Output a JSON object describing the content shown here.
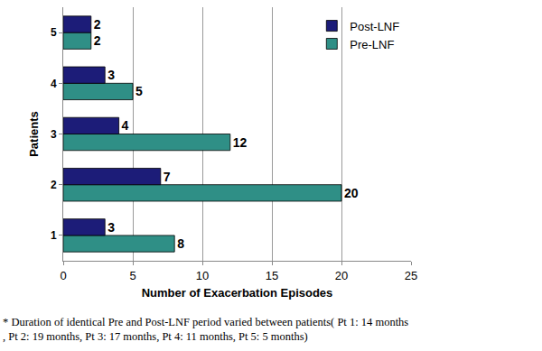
{
  "chart_data": {
    "type": "bar",
    "orientation": "horizontal",
    "categories": [
      "1",
      "2",
      "3",
      "4",
      "5"
    ],
    "series": [
      {
        "name": "Post-LNF",
        "color": "#1c1c78",
        "values": [
          3,
          7,
          4,
          3,
          2
        ]
      },
      {
        "name": "Pre-LNF",
        "color": "#2f8f86",
        "values": [
          8,
          20,
          12,
          5,
          2
        ]
      }
    ],
    "xlabel": "Number of Exacerbation Episodes",
    "ylabel": "Patients",
    "xlim": [
      0,
      25
    ],
    "xticks": [
      0,
      5,
      10,
      15,
      20,
      25
    ],
    "grid": true,
    "legend": "upper right",
    "data_labels": true,
    "annotations": [
      "* Duration of identical Pre and Post-LNF period varied between patients( Pt 1: 14 months",
      ", Pt 2: 19 months, Pt 3: 17 months, Pt 4: 11 months, Pt 5: 5 months)"
    ]
  }
}
